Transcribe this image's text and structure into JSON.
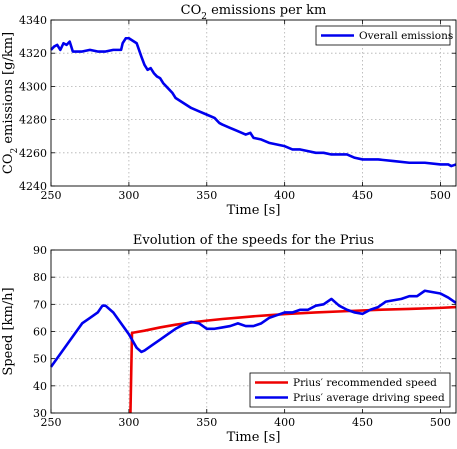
{
  "chart_data": [
    {
      "type": "line",
      "title_parts": [
        "CO",
        "2",
        " emissions per km"
      ],
      "xlabel": "Time [s]",
      "ylabel_parts": [
        "CO",
        "2",
        " emissions [g/km]"
      ],
      "xlim": [
        250,
        510
      ],
      "ylim": [
        4240,
        4340
      ],
      "xticks": [
        250,
        300,
        350,
        400,
        450,
        500
      ],
      "yticks": [
        4240,
        4260,
        4280,
        4300,
        4320,
        4340
      ],
      "grid": true,
      "legend_placement": "top-right",
      "series": [
        {
          "name": "Overall emissions",
          "color": "#0000ee",
          "x": [
            250,
            252,
            254,
            256,
            258,
            260,
            262,
            264,
            266,
            268,
            270,
            275,
            280,
            285,
            290,
            295,
            296,
            298,
            300,
            305,
            308,
            310,
            312,
            314,
            316,
            318,
            320,
            322,
            325,
            328,
            330,
            335,
            340,
            345,
            350,
            355,
            358,
            360,
            365,
            370,
            375,
            378,
            380,
            385,
            390,
            395,
            400,
            405,
            410,
            415,
            420,
            425,
            430,
            435,
            440,
            445,
            450,
            460,
            470,
            480,
            490,
            500,
            505,
            507,
            510
          ],
          "y": [
            4322,
            4324,
            4325,
            4322,
            4326,
            4325,
            4327,
            4321,
            4321,
            4321,
            4321,
            4322,
            4321,
            4321,
            4322,
            4322,
            4326,
            4329,
            4329,
            4326,
            4318,
            4313,
            4310,
            4311,
            4308,
            4306,
            4305,
            4302,
            4299,
            4296,
            4293,
            4290,
            4287,
            4285,
            4283,
            4281,
            4278,
            4277,
            4275,
            4273,
            4271,
            4272,
            4269,
            4268,
            4266,
            4265,
            4264,
            4262,
            4262,
            4261,
            4260,
            4260,
            4259,
            4259,
            4259,
            4257,
            4256,
            4256,
            4255,
            4254,
            4254,
            4253,
            4253,
            4252,
            4253
          ]
        }
      ]
    },
    {
      "type": "line",
      "title": "Evolution of the speeds for the Prius",
      "xlabel": "Time [s]",
      "ylabel": "Speed [km/h]",
      "xlim": [
        250,
        510
      ],
      "ylim": [
        30,
        90
      ],
      "xticks": [
        250,
        300,
        350,
        400,
        450,
        500
      ],
      "yticks": [
        30,
        40,
        50,
        60,
        70,
        80,
        90
      ],
      "grid": true,
      "legend_placement": "bottom-right",
      "series": [
        {
          "name": "Prius′ recommended speed",
          "color": "#ee0000",
          "x": [
            301,
            302,
            310,
            320,
            330,
            340,
            350,
            360,
            370,
            380,
            390,
            400,
            420,
            440,
            460,
            480,
            500,
            510
          ],
          "y": [
            30,
            59.5,
            60.3,
            61.5,
            62.5,
            63.3,
            64.0,
            64.6,
            65.1,
            65.6,
            66.0,
            66.4,
            67.0,
            67.5,
            68.0,
            68.3,
            68.7,
            69.0
          ]
        },
        {
          "name": "Prius′ average driving speed",
          "color": "#0000ee",
          "x": [
            250,
            255,
            260,
            265,
            270,
            275,
            280,
            283,
            285,
            290,
            295,
            300,
            305,
            308,
            310,
            315,
            320,
            325,
            330,
            335,
            340,
            345,
            350,
            355,
            360,
            365,
            370,
            375,
            380,
            385,
            390,
            395,
            400,
            405,
            410,
            415,
            420,
            425,
            430,
            435,
            440,
            445,
            450,
            455,
            460,
            465,
            470,
            475,
            480,
            485,
            490,
            495,
            500,
            505,
            510
          ],
          "y": [
            47,
            51,
            55,
            59,
            63,
            65,
            67,
            69.5,
            69.5,
            67,
            63,
            59,
            54,
            52.5,
            53,
            55,
            57,
            59,
            61,
            62.5,
            63.5,
            63,
            61,
            61,
            61.5,
            62,
            63,
            62,
            62,
            63,
            65,
            66,
            67,
            67,
            68,
            68,
            69.5,
            70,
            72,
            69.5,
            68,
            67,
            66.5,
            68,
            69,
            71,
            71.5,
            72,
            73,
            73,
            75,
            74.5,
            74,
            72.5,
            70.5
          ]
        }
      ]
    }
  ]
}
